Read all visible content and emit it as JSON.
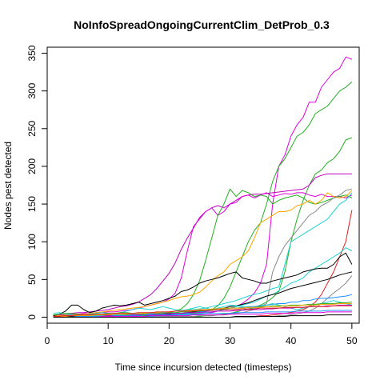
{
  "chart_data": {
    "type": "line",
    "title": "NoInfoSpreadOngoingCurrentClim_DetProb_0.3",
    "xlabel": "Time since incursion detected (timesteps)",
    "ylabel": "Nodes pest detected",
    "xlim": [
      0,
      51.2
    ],
    "ylim": [
      -8,
      358
    ],
    "x_ticks": [
      "0",
      "10",
      "20",
      "30",
      "40",
      "50"
    ],
    "y_ticks": [
      "0",
      "50",
      "100",
      "150",
      "200",
      "250",
      "300",
      "350"
    ],
    "x": [
      1,
      2,
      3,
      4,
      5,
      6,
      7,
      8,
      9,
      10,
      11,
      12,
      13,
      14,
      15,
      16,
      17,
      18,
      19,
      20,
      21,
      22,
      23,
      24,
      25,
      26,
      27,
      28,
      29,
      30,
      31,
      32,
      33,
      34,
      35,
      36,
      37,
      38,
      39,
      40,
      41,
      42,
      43,
      44,
      45,
      46,
      47,
      48,
      49,
      50
    ],
    "series": [
      {
        "color": "#DF00DF",
        "values": [
          2,
          2,
          2,
          2,
          2,
          2,
          2,
          2,
          2,
          2,
          2,
          2,
          2,
          2,
          2,
          2,
          2,
          2,
          2,
          2,
          3,
          3,
          3,
          4,
          4,
          5,
          6,
          8,
          10,
          12,
          14,
          18,
          24,
          32,
          45,
          70,
          150,
          200,
          215,
          240,
          255,
          265,
          285,
          285,
          305,
          315,
          325,
          330,
          345,
          342
        ]
      },
      {
        "color": "#22B022",
        "values": [
          3,
          3,
          3,
          3,
          3,
          3,
          3,
          3,
          3,
          3,
          3,
          3,
          3,
          3,
          3,
          3,
          3,
          3,
          3,
          3,
          3,
          4,
          4,
          5,
          6,
          8,
          10,
          15,
          25,
          40,
          60,
          80,
          100,
          115,
          125,
          150,
          180,
          200,
          210,
          225,
          240,
          245,
          255,
          270,
          275,
          280,
          290,
          300,
          305,
          312
        ]
      },
      {
        "color": "#22B022",
        "values": [
          1,
          1,
          1,
          1,
          1,
          1,
          1,
          1,
          1,
          1,
          1,
          1,
          1,
          1,
          1,
          1,
          1,
          1,
          1,
          1,
          1,
          1,
          1,
          1,
          1,
          2,
          2,
          3,
          4,
          5,
          7,
          9,
          11,
          13,
          16,
          20,
          26,
          34,
          60,
          100,
          130,
          155,
          175,
          190,
          195,
          205,
          210,
          220,
          235,
          238
        ]
      },
      {
        "color": "#C000C0",
        "values": [
          2,
          3,
          4,
          5,
          6,
          6,
          7,
          8,
          9,
          10,
          12,
          14,
          15,
          17,
          20,
          25,
          30,
          38,
          48,
          58,
          72,
          90,
          105,
          118,
          132,
          140,
          145,
          148,
          145,
          150,
          155,
          160,
          162,
          163,
          163,
          164,
          165,
          166,
          167,
          168,
          169,
          170,
          175,
          185,
          188,
          190,
          190,
          190,
          190,
          190
        ]
      },
      {
        "color": "#DF00DF",
        "values": [
          3,
          3,
          3,
          4,
          4,
          5,
          5,
          6,
          6,
          7,
          7,
          8,
          9,
          10,
          12,
          14,
          16,
          18,
          20,
          24,
          32,
          52,
          88,
          120,
          130,
          140,
          145,
          135,
          140,
          150,
          152,
          160,
          162,
          158,
          162,
          165,
          160,
          162,
          164,
          163,
          165,
          165,
          162,
          160,
          163,
          160,
          160,
          160,
          158,
          162
        ]
      },
      {
        "color": "#22B022",
        "values": [
          1,
          1,
          1,
          1,
          1,
          1,
          1,
          1,
          1,
          1,
          1,
          1,
          1,
          1,
          2,
          2,
          3,
          4,
          5,
          6,
          8,
          11,
          18,
          30,
          48,
          75,
          105,
          135,
          150,
          170,
          160,
          168,
          165,
          160,
          162,
          160,
          150,
          155,
          158,
          160,
          162,
          158,
          152,
          150,
          152,
          155,
          158,
          160,
          162,
          158
        ]
      },
      {
        "color": "#FFA500",
        "values": [
          2,
          2,
          3,
          3,
          4,
          4,
          5,
          6,
          7,
          8,
          9,
          10,
          11,
          12,
          13,
          14,
          16,
          18,
          20,
          22,
          25,
          27,
          28,
          30,
          33,
          40,
          48,
          55,
          60,
          70,
          75,
          80,
          88,
          105,
          125,
          130,
          135,
          140,
          140,
          142,
          148,
          150,
          155,
          150,
          155,
          165,
          160,
          158,
          160,
          168
        ]
      },
      {
        "color": "#1FD0D0",
        "values": [
          0,
          0,
          1,
          1,
          1,
          1,
          2,
          2,
          2,
          3,
          3,
          3,
          4,
          4,
          4,
          5,
          5,
          6,
          6,
          7,
          8,
          9,
          10,
          10,
          11,
          12,
          14,
          16,
          18,
          20,
          22,
          25,
          28,
          30,
          32,
          35,
          38,
          40,
          70,
          100,
          105,
          110,
          115,
          120,
          125,
          130,
          140,
          150,
          155,
          165
        ]
      },
      {
        "color": "#8A8A8A",
        "values": [
          1,
          1,
          1,
          1,
          1,
          1,
          1,
          1,
          1,
          1,
          1,
          1,
          1,
          1,
          1,
          1,
          1,
          1,
          1,
          1,
          1,
          1,
          1,
          1,
          2,
          2,
          2,
          3,
          3,
          4,
          5,
          6,
          8,
          10,
          14,
          18,
          60,
          80,
          95,
          105,
          115,
          125,
          135,
          140,
          148,
          152,
          158,
          162,
          168,
          170
        ]
      },
      {
        "color": "#E02020",
        "values": [
          0,
          0,
          0,
          0,
          0,
          0,
          0,
          0,
          0,
          0,
          0,
          0,
          0,
          0,
          0,
          0,
          0,
          0,
          0,
          0,
          0,
          0,
          0,
          0,
          0,
          0,
          0,
          0,
          0,
          0,
          0,
          1,
          1,
          1,
          2,
          2,
          3,
          4,
          5,
          6,
          8,
          10,
          14,
          20,
          30,
          45,
          60,
          80,
          100,
          142
        ]
      },
      {
        "color": "#1FD0D0",
        "values": [
          0,
          0,
          0,
          0,
          0,
          0,
          0,
          0,
          0,
          0,
          0,
          0,
          1,
          1,
          1,
          1,
          1,
          2,
          2,
          2,
          3,
          3,
          3,
          4,
          5,
          6,
          7,
          8,
          10,
          12,
          14,
          16,
          18,
          20,
          24,
          28,
          30,
          35,
          40,
          45,
          48,
          52,
          60,
          65,
          70,
          75,
          80,
          85,
          92,
          88
        ]
      },
      {
        "color": "#000000",
        "values": [
          2,
          4,
          8,
          16,
          16,
          10,
          6,
          8,
          12,
          14,
          16,
          15,
          16,
          18,
          20,
          16,
          18,
          20,
          22,
          25,
          28,
          34,
          36,
          40,
          45,
          48,
          50,
          52,
          55,
          58,
          60,
          52,
          50,
          48,
          45,
          45,
          48,
          50,
          52,
          54,
          56,
          60,
          62,
          64,
          65,
          65,
          70,
          80,
          85,
          70
        ]
      },
      {
        "color": "#000000",
        "values": [
          1,
          1,
          1,
          1,
          1,
          1,
          1,
          1,
          1,
          2,
          2,
          2,
          2,
          2,
          3,
          3,
          3,
          3,
          4,
          4,
          5,
          5,
          6,
          7,
          8,
          9,
          10,
          11,
          12,
          14,
          15,
          17,
          19,
          22,
          25,
          28,
          30,
          32,
          35,
          38,
          40,
          42,
          44,
          46,
          48,
          50,
          53,
          56,
          58,
          60
        ]
      },
      {
        "color": "#8A8A8A",
        "values": [
          0,
          0,
          0,
          0,
          0,
          0,
          0,
          0,
          0,
          0,
          0,
          0,
          0,
          0,
          0,
          0,
          0,
          0,
          0,
          0,
          0,
          0,
          0,
          0,
          0,
          0,
          0,
          0,
          0,
          0,
          0,
          0,
          0,
          0,
          1,
          1,
          1,
          2,
          2,
          3,
          4,
          6,
          8,
          12,
          18,
          25,
          32,
          38,
          45,
          55
        ]
      },
      {
        "color": "#1E90FF",
        "values": [
          0,
          0,
          0,
          0,
          0,
          0,
          0,
          0,
          0,
          0,
          0,
          0,
          0,
          0,
          1,
          1,
          1,
          2,
          2,
          3,
          3,
          4,
          5,
          6,
          7,
          8,
          9,
          10,
          11,
          12,
          12,
          13,
          14,
          14,
          15,
          16,
          17,
          18,
          18,
          20,
          20,
          22,
          22,
          24,
          25,
          25,
          26,
          27,
          28,
          30
        ]
      },
      {
        "color": "#1FD0D0",
        "values": [
          5,
          6,
          4,
          3,
          2,
          3,
          4,
          5,
          6,
          5,
          4,
          6,
          8,
          10,
          12,
          11,
          10,
          12,
          14,
          12,
          10,
          8,
          10,
          12,
          14,
          12,
          10,
          12,
          14,
          16,
          15,
          14,
          13,
          12,
          14,
          16,
          18,
          16,
          14,
          12,
          10,
          12,
          14,
          16,
          18,
          20,
          22,
          20,
          18,
          16
        ]
      },
      {
        "color": "#22B022",
        "values": [
          3,
          4,
          5,
          5,
          4,
          3,
          3,
          4,
          4,
          5,
          5,
          6,
          6,
          5,
          5,
          4,
          4,
          5,
          5,
          6,
          6,
          7,
          7,
          8,
          8,
          9,
          10,
          10,
          11,
          12,
          12,
          12,
          13,
          13,
          14,
          14,
          15,
          15,
          15,
          16,
          16,
          16,
          17,
          17,
          18,
          18,
          18,
          19,
          19,
          20
        ]
      },
      {
        "color": "#C000C0",
        "values": [
          0,
          0,
          0,
          0,
          0,
          1,
          1,
          1,
          1,
          2,
          2,
          2,
          2,
          3,
          3,
          3,
          4,
          4,
          4,
          5,
          5,
          5,
          6,
          6,
          6,
          7,
          7,
          8,
          8,
          8,
          9,
          9,
          10,
          10,
          10,
          11,
          11,
          12,
          12,
          12,
          13,
          13,
          14,
          14,
          14,
          15,
          15,
          16,
          16,
          16
        ]
      },
      {
        "color": "#FFA500",
        "values": [
          1,
          1,
          1,
          2,
          2,
          2,
          2,
          3,
          3,
          3,
          4,
          4,
          4,
          5,
          5,
          5,
          6,
          6,
          7,
          7,
          8,
          8,
          9,
          9,
          10,
          10,
          11,
          11,
          12,
          12,
          12,
          12,
          13,
          13,
          13,
          14,
          14,
          14,
          15,
          15,
          15,
          16,
          16,
          16,
          17,
          17,
          17,
          18,
          18,
          18
        ]
      },
      {
        "color": "#E02020",
        "values": [
          1,
          1,
          2,
          2,
          3,
          3,
          3,
          4,
          4,
          4,
          5,
          5,
          5,
          5,
          6,
          6,
          6,
          7,
          7,
          7,
          8,
          8,
          8,
          8,
          9,
          9,
          9,
          10,
          10,
          10,
          10,
          11,
          11,
          11,
          12,
          12,
          12,
          12,
          13,
          13,
          13,
          13,
          14,
          14,
          14,
          14,
          15,
          15,
          15,
          15
        ]
      },
      {
        "color": "#1E90FF",
        "values": [
          0,
          0,
          0,
          0,
          1,
          1,
          1,
          1,
          1,
          1,
          2,
          2,
          2,
          2,
          2,
          3,
          3,
          3,
          3,
          3,
          4,
          4,
          4,
          4,
          4,
          5,
          5,
          5,
          5,
          5,
          6,
          6,
          6,
          6,
          6,
          7,
          7,
          7,
          7,
          7,
          8,
          8,
          8,
          8,
          8,
          9,
          9,
          9,
          9,
          9
        ]
      },
      {
        "color": "#DF00DF",
        "values": [
          0,
          0,
          0,
          0,
          0,
          0,
          0,
          0,
          1,
          1,
          1,
          1,
          1,
          1,
          1,
          1,
          2,
          2,
          2,
          2,
          2,
          2,
          2,
          3,
          3,
          3,
          3,
          3,
          3,
          4,
          4,
          4,
          4,
          4,
          4,
          5,
          5,
          5,
          5,
          5,
          6,
          6,
          6,
          6,
          6,
          7,
          7,
          7,
          7,
          7
        ]
      },
      {
        "color": "#000000",
        "values": [
          0,
          0,
          0,
          0,
          0,
          0,
          0,
          0,
          0,
          0,
          0,
          0,
          0,
          0,
          0,
          0,
          0,
          0,
          0,
          0,
          0,
          0,
          0,
          0,
          0,
          0,
          0,
          0,
          0,
          0,
          1,
          1,
          1,
          1,
          1,
          1,
          1,
          1,
          1,
          2,
          2,
          2,
          2,
          2,
          2,
          3,
          3,
          3,
          3,
          3
        ]
      }
    ]
  }
}
